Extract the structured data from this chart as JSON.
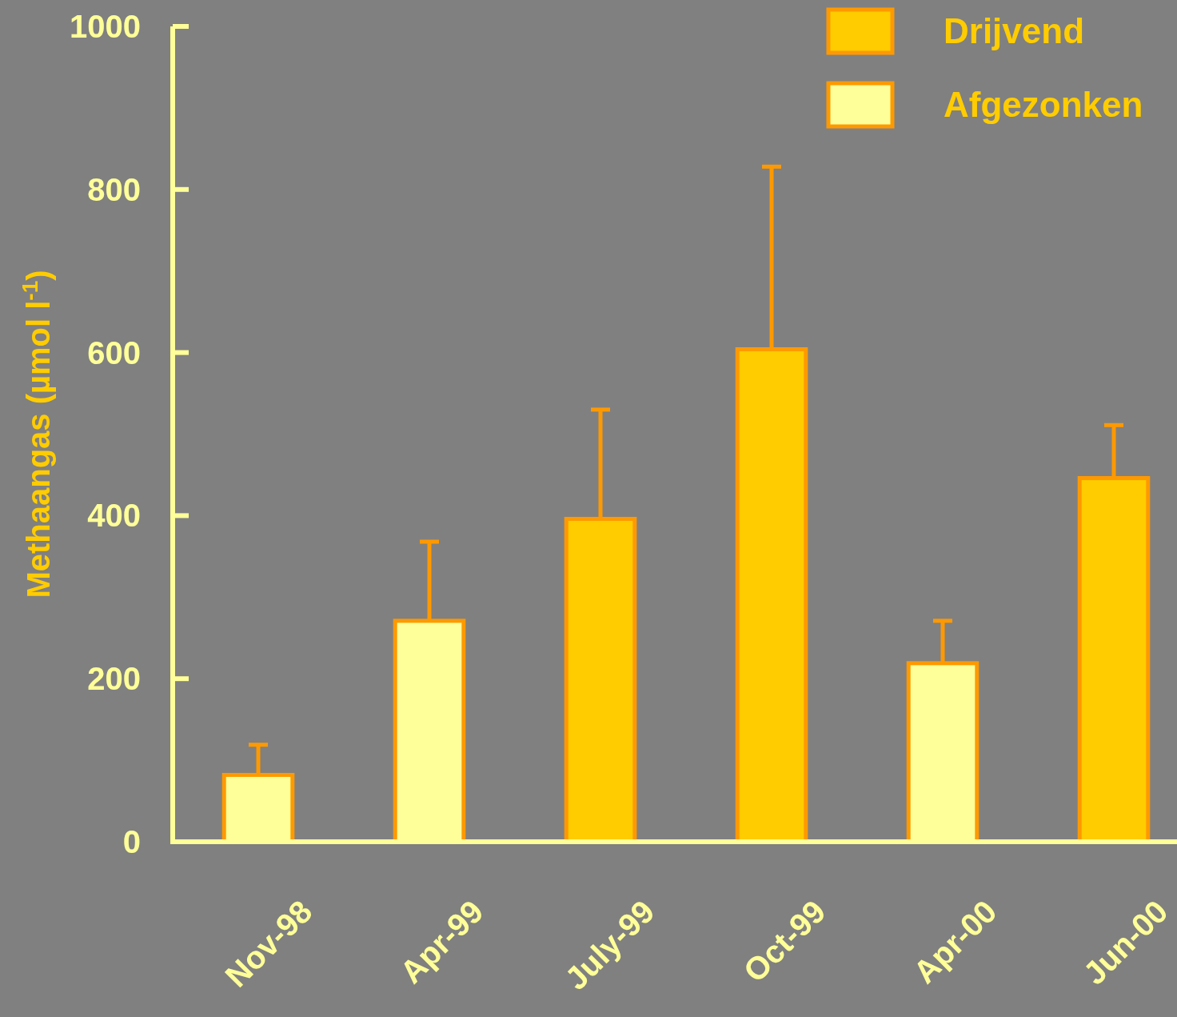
{
  "chart_data": {
    "type": "bar",
    "ylabel": "Methaangas (µmol l$^{-1}$)",
    "categories": [
      "Nov-98",
      "Apr-99",
      "July-99",
      "Oct-99",
      "Apr-00",
      "Jun-00"
    ],
    "series": [
      {
        "name": "Drijvend",
        "color": "#ffcc00",
        "values": [
          null,
          null,
          396,
          604,
          null,
          446
        ],
        "errors": [
          null,
          null,
          [
            396,
            530
          ],
          [
            604,
            828
          ],
          null,
          [
            446,
            511
          ]
        ]
      },
      {
        "name": "Afgezonken",
        "color": "#ffff99",
        "values": [
          82,
          271,
          null,
          null,
          219,
          null
        ],
        "errors": [
          [
            82,
            119
          ],
          [
            271,
            368
          ],
          null,
          null,
          [
            219,
            271
          ],
          null
        ]
      }
    ],
    "ylim": [
      0,
      1000
    ],
    "yticks": [
      0,
      200,
      400,
      600,
      800,
      1000
    ],
    "grid": false,
    "legend": "top right"
  }
}
